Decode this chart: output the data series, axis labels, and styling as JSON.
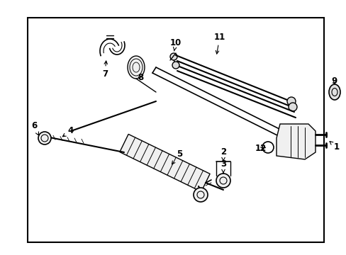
{
  "bg_color": "#ffffff",
  "border_color": "#000000",
  "line_color": "#000000",
  "text_color": "#000000",
  "fig_width": 4.89,
  "fig_height": 3.6,
  "dpi": 100,
  "font_size": 8.5,
  "border": [
    0.08,
    0.07,
    0.855,
    0.88
  ]
}
